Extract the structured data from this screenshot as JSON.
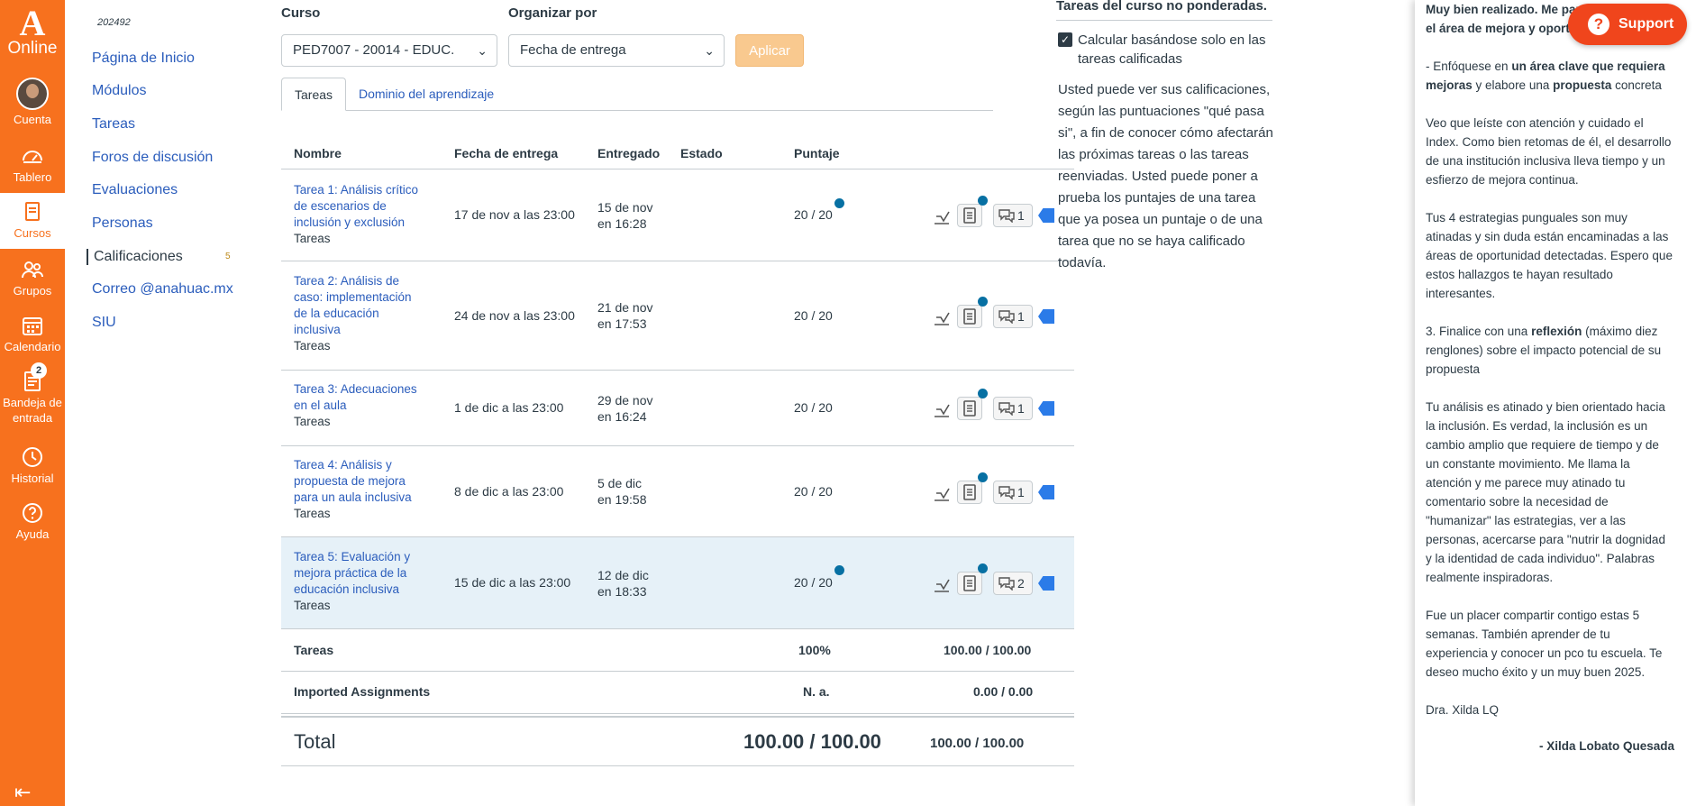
{
  "global_nav": {
    "logo_text": "Online",
    "items": [
      {
        "label": "Cuenta",
        "icon": "avatar"
      },
      {
        "label": "Tablero",
        "icon": "dashboard-icon"
      },
      {
        "label": "Cursos",
        "icon": "book-icon"
      },
      {
        "label": "Grupos",
        "icon": "groups-icon"
      },
      {
        "label": "Calendario",
        "icon": "calendar-icon"
      },
      {
        "label": "Bandeja de entrada",
        "icon": "inbox-icon",
        "badge": "2"
      },
      {
        "label": "Historial",
        "icon": "clock-icon"
      },
      {
        "label": "Ayuda",
        "icon": "help-icon"
      }
    ],
    "accent_color": "#f7711e"
  },
  "course_nav": {
    "term": "202492",
    "items": [
      {
        "label": "Página de Inicio"
      },
      {
        "label": "Módulos"
      },
      {
        "label": "Tareas"
      },
      {
        "label": "Foros de discusión"
      },
      {
        "label": "Evaluaciones"
      },
      {
        "label": "Personas"
      },
      {
        "label": "Calificaciones",
        "count": "5"
      },
      {
        "label": "Correo @anahuac.mx"
      },
      {
        "label": "SIU"
      }
    ]
  },
  "filters": {
    "course_label": "Curso",
    "course_value": "PED7007 - 20014 - EDUC.",
    "sort_label": "Organizar por",
    "sort_value": "Fecha de entrega",
    "apply_label": "Aplicar"
  },
  "tabs": [
    {
      "label": "Tareas"
    },
    {
      "label": "Dominio del aprendizaje"
    }
  ],
  "table": {
    "headers": [
      "Nombre",
      "Fecha de entrega",
      "Entregado",
      "Estado",
      "Puntaje"
    ],
    "rows": [
      {
        "name": "Tarea 1: Análisis crítico de escenarios de inclusión y exclusión",
        "category": "Tareas",
        "due": "17 de nov a las 23:00",
        "submitted_1": "15 de nov",
        "submitted_2": "en 16:28",
        "score": "20 / 20",
        "comments": "1"
      },
      {
        "name": "Tarea 2: Análisis de caso: implementación de la educación inclusiva",
        "category": "Tareas",
        "due": "24 de nov a las 23:00",
        "submitted_1": "21 de nov",
        "submitted_2": "en 17:53",
        "score": "20 / 20",
        "comments": "1"
      },
      {
        "name": "Tarea 3: Adecuaciones en el aula",
        "category": "Tareas",
        "due": "1 de dic a las 23:00",
        "submitted_1": "29 de nov",
        "submitted_2": "en 16:24",
        "score": "20 / 20",
        "comments": "1"
      },
      {
        "name": "Tarea 4: Análisis y propuesta de mejora para un aula inclusiva",
        "category": "Tareas",
        "due": "8 de dic a las 23:00",
        "submitted_1": "5 de dic",
        "submitted_2": "en 19:58",
        "score": "20 / 20",
        "comments": "1"
      },
      {
        "name": "Tarea 5: Evaluación y mejora práctica de la educación inclusiva",
        "category": "Tareas",
        "due": "15 de dic a las 23:00",
        "submitted_1": "12 de dic",
        "submitted_2": "en 18:33",
        "score": "20 / 20",
        "comments": "2"
      }
    ],
    "summary": [
      {
        "label": "Tareas",
        "percent": "100%",
        "points": "100.00 / 100.00"
      },
      {
        "label": "Imported Assignments",
        "percent": "N. a.",
        "points": "0.00 / 0.00"
      }
    ],
    "total": {
      "label": "Total",
      "score": "100.00 / 100.00",
      "points": "100.00 / 100.00"
    }
  },
  "sidebar": {
    "header": "Tareas del curso no ponderadas.",
    "checkbox_label": "Calcular basándose solo en las tareas calificadas",
    "info": "Usted puede ver sus calificaciones, según las puntuaciones \"qué pasa si\", a fin de conocer cómo afectarán las próximas tareas o las tareas reenviadas. Usted puede poner a prueba los puntajes de una tarea que ya posea un puntaje o de una tarea que no se haya calificado todavía."
  },
  "comment_tray": {
    "p1_bold": "Muy bien realizado. Me parece interesante el área de mejora y oportunidad.",
    "p2_pre": "- Enfóquese en ",
    "p2_bold1": "un área clave que requiera mejoras",
    "p2_mid": " y elabore una ",
    "p2_bold2": "propuesta",
    "p2_post": " concreta",
    "p3": "Veo que leíste con atención y cuidado el Index. Como bien retomas de él, el desarrollo de una institución inclusiva lleva tiempo y un esfierzo de mejora continua.",
    "p4": "Tus 4 estrategias punguales son muy atinadas y sin duda están encaminadas a las áreas de oportunidad detectadas. Espero que estos hallazgos te hayan resultado interesantes.",
    "p5_pre": "3. Finalice con una ",
    "p5_bold": "reflexión",
    "p5_post": " (máximo diez renglones) sobre el impacto potencial de su propuesta",
    "p6": "Tu análisis es atinado y bien orientado hacia la inclusión. Es verdad, la inclusión es un cambio amplio que requiere de tiempo y de un constante movimiento. Me llama la atención y me parece muy atinado tu comentario sobre la necesidad de \"humanizar\" las estrategias, ver a las personas, acercarse para \"nutrir la dognidad y la identidad de cada individuo\". Palabras realmente inspiradoras.",
    "p7": "Fue un placer compartir contigo estas 5 semanas. También aprender de tu experiencia y conocer un pco tu escuela. Te deseo mucho éxito y un muy buen 2025.",
    "p8": "Dra. Xilda LQ",
    "signature": "- Xilda Lobato Quesada"
  },
  "support_button": {
    "label": "Support"
  }
}
